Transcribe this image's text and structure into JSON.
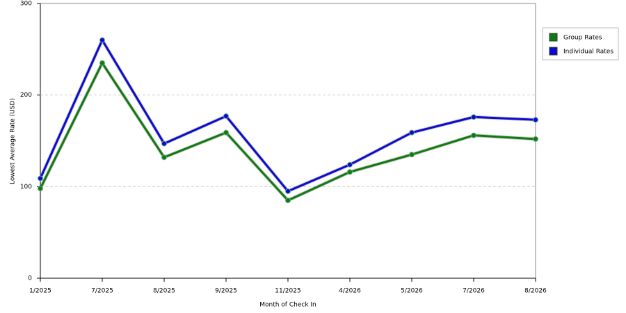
{
  "chart_data": {
    "type": "line",
    "x_label": "Month of Check In",
    "y_label": "Lowest Average Rate (USD)",
    "categories": [
      "1/2025",
      "7/2025",
      "8/2025",
      "9/2025",
      "11/2025",
      "4/2026",
      "5/2026",
      "7/2026",
      "8/2026"
    ],
    "series": [
      {
        "name": "Group Rates",
        "color": "#0f7a0f",
        "values": [
          98,
          235,
          132,
          159,
          85,
          116,
          135,
          156,
          152
        ]
      },
      {
        "name": "Individual Rates",
        "color": "#0a0ad0",
        "values": [
          109,
          260,
          147,
          177,
          95,
          124,
          159,
          176,
          173
        ]
      }
    ],
    "ylim": [
      0,
      300
    ],
    "yticks": [
      0,
      100,
      200,
      300
    ],
    "grid": true,
    "legend": "right"
  }
}
